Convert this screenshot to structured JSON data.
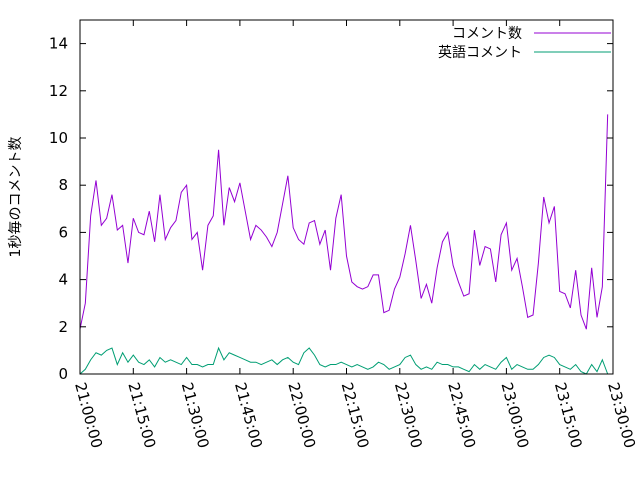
{
  "chart_data": {
    "type": "line",
    "title": "",
    "xlabel": "",
    "ylabel": "1秒毎のコメント数",
    "x_ticks": [
      "21:00:00",
      "21:15:00",
      "21:30:00",
      "21:45:00",
      "22:00:00",
      "22:15:00",
      "22:30:00",
      "22:45:00",
      "23:00:00",
      "23:15:00",
      "23:30:00"
    ],
    "y_ticks": [
      "0",
      "2",
      "4",
      "6",
      "8",
      "10",
      "12",
      "14"
    ],
    "xlim": [
      "21:00:00",
      "23:30:00"
    ],
    "ylim": [
      0,
      15
    ],
    "grid": false,
    "legend_position": "top-right",
    "x_interval_minutes": 1.5,
    "x_start": "21:00:00",
    "series": [
      {
        "name": "コメント数",
        "color": "#9400d3",
        "values": [
          1.9,
          3.0,
          6.7,
          8.2,
          6.3,
          6.6,
          7.6,
          6.1,
          6.3,
          4.7,
          6.6,
          6.0,
          5.9,
          6.9,
          5.6,
          7.6,
          5.7,
          6.2,
          6.5,
          7.7,
          8.0,
          5.7,
          6.0,
          4.4,
          6.3,
          6.7,
          9.5,
          6.3,
          7.9,
          7.3,
          8.1,
          6.9,
          5.7,
          6.3,
          6.1,
          5.8,
          5.4,
          6.0,
          7.2,
          8.4,
          6.2,
          5.7,
          5.5,
          6.4,
          6.5,
          5.5,
          6.1,
          4.4,
          6.6,
          7.6,
          5.0,
          3.9,
          3.7,
          3.6,
          3.7,
          4.2,
          4.2,
          2.6,
          2.7,
          3.6,
          4.1,
          5.1,
          6.3,
          4.8,
          3.2,
          3.8,
          3.0,
          4.5,
          5.6,
          6.0,
          4.6,
          3.9,
          3.3,
          3.4,
          6.1,
          4.6,
          5.4,
          5.3,
          3.9,
          5.9,
          6.4,
          4.4,
          4.9,
          3.7,
          2.4,
          2.5,
          4.7,
          7.5,
          6.4,
          7.1,
          3.5,
          3.4,
          2.8,
          4.4,
          2.5,
          1.9,
          4.5,
          2.4,
          3.7,
          11.0
        ]
      },
      {
        "name": "英語コメント",
        "color": "#009e73",
        "values": [
          0.0,
          0.2,
          0.6,
          0.9,
          0.8,
          1.0,
          1.1,
          0.4,
          0.9,
          0.5,
          0.8,
          0.5,
          0.4,
          0.6,
          0.3,
          0.7,
          0.5,
          0.6,
          0.5,
          0.4,
          0.7,
          0.4,
          0.4,
          0.3,
          0.4,
          0.4,
          1.1,
          0.6,
          0.9,
          0.8,
          0.7,
          0.6,
          0.5,
          0.5,
          0.4,
          0.5,
          0.6,
          0.4,
          0.6,
          0.7,
          0.5,
          0.4,
          0.9,
          1.1,
          0.8,
          0.4,
          0.3,
          0.4,
          0.4,
          0.5,
          0.4,
          0.3,
          0.4,
          0.3,
          0.2,
          0.3,
          0.5,
          0.4,
          0.2,
          0.3,
          0.4,
          0.7,
          0.8,
          0.4,
          0.2,
          0.3,
          0.2,
          0.5,
          0.4,
          0.4,
          0.3,
          0.3,
          0.2,
          0.1,
          0.4,
          0.2,
          0.4,
          0.3,
          0.2,
          0.5,
          0.7,
          0.2,
          0.4,
          0.3,
          0.2,
          0.2,
          0.4,
          0.7,
          0.8,
          0.7,
          0.4,
          0.3,
          0.2,
          0.4,
          0.1,
          0.0,
          0.4,
          0.1,
          0.6,
          0.0
        ]
      }
    ]
  }
}
